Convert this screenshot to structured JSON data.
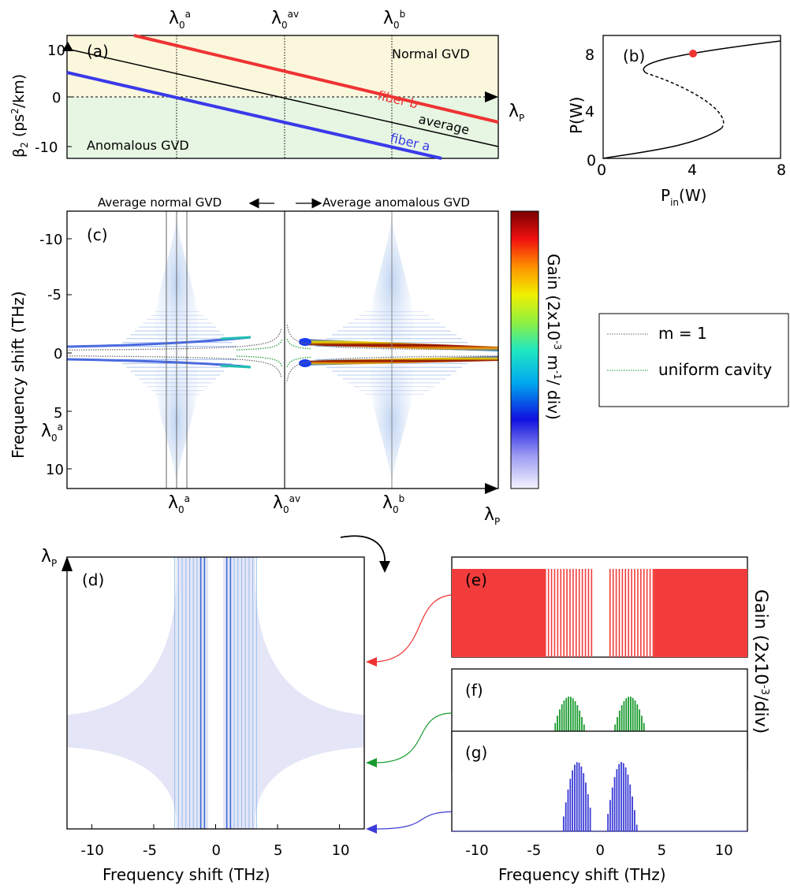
{
  "panels": {
    "a": {
      "tag": "(a)",
      "normal_region": "Normal GVD",
      "anomalous_region": "Anomalous GVD",
      "ylabel_main": "β",
      "ylabel_sub": "2",
      "ylabel_unit_a": " (ps",
      "ylabel_unit_sup": "2",
      "ylabel_unit_b": "/km)",
      "fiber_b_label": "fiber b",
      "average_label": "average",
      "fiber_a_label": "fiber a"
    },
    "b": {
      "tag": "(b)",
      "ylabel": "P(W)",
      "xlabel_main": "P",
      "xlabel_sub": "in",
      "xlabel_unit": "(W)"
    },
    "c": {
      "tag": "(c)",
      "ylabel": "Frequency shift (THz)",
      "normal_note": "Average normal GVD",
      "anomalous_note": "Average anomalous GVD",
      "colorbar_label_a": "Gain (2x10",
      "colorbar_sup": "-3",
      "colorbar_label_b": " m",
      "colorbar_sup2": "-1",
      "colorbar_label_c": "/ div)"
    },
    "d": {
      "tag": "(d)",
      "xlabel": "Frequency shift (THz)"
    },
    "e": {
      "tag": "(e)"
    },
    "f": {
      "tag": "(f)"
    },
    "g": {
      "tag": "(g)",
      "xlabel": "Frequency shift (THz)"
    },
    "right_gain_label_a": "Gain (2x10",
    "right_gain_sup": "-3",
    "right_gain_label_b": "/div)"
  },
  "wavelength_labels": {
    "lam": "λ",
    "zero": "0",
    "a": "a",
    "av": "av",
    "b": "b",
    "P": "P"
  },
  "legend": {
    "m1": "m = 1",
    "uniform": "uniform cavity"
  },
  "colors": {
    "fiber_a": "#3a3aea",
    "fiber_b": "#ee3333",
    "average": "#000000",
    "normal_bg": "#fbf7dc",
    "anomalous_bg": "#e6f6e2",
    "panel_e": "#f23c3c",
    "panel_f": "#1a9a2e",
    "panel_g": "#3b3bd6",
    "grid_blue": "#6a96de"
  },
  "chart_data": [
    {
      "type": "line",
      "panel": "a",
      "xlabel": "λP",
      "ylim": [
        -13,
        13
      ],
      "yticks": [
        -10,
        0,
        10
      ],
      "series": [
        {
          "name": "fiber b",
          "values_at_lambda": {
            "λ0a": 10.5,
            "λ0av": 5,
            "λ0b": 0
          }
        },
        {
          "name": "average",
          "values_at_lambda": {
            "λ0a": 5,
            "λ0av": 0,
            "λ0b": -5
          }
        },
        {
          "name": "fiber a",
          "values_at_lambda": {
            "λ0a": 0,
            "λ0av": -5,
            "λ0b": -10.5
          }
        }
      ]
    },
    {
      "type": "line",
      "panel": "b",
      "xlim": [
        0,
        8
      ],
      "ylim": [
        0,
        8.7
      ],
      "xticks": [
        0,
        4,
        8
      ],
      "yticks": [
        0,
        4,
        8
      ],
      "marker": {
        "x": 4,
        "y": 7.8
      }
    },
    {
      "type": "heatmap",
      "panel": "c",
      "ylim": [
        -12,
        12
      ],
      "yticks": [
        -10,
        -5,
        0,
        5,
        10
      ],
      "xticks": [
        "λ0a",
        "λ0av",
        "λ0b"
      ]
    },
    {
      "type": "heatmap",
      "panel": "d",
      "xlim": [
        -12,
        12
      ],
      "xticks": [
        -10,
        -5,
        0,
        5,
        10
      ]
    },
    {
      "type": "bar",
      "panel": "e",
      "xlim": [
        -12,
        12
      ]
    },
    {
      "type": "bar",
      "panel": "f",
      "xlim": [
        -12,
        12
      ]
    },
    {
      "type": "bar",
      "panel": "g",
      "xlim": [
        -12,
        12
      ],
      "xticks": [
        -10,
        -5,
        0,
        5,
        10
      ]
    }
  ]
}
